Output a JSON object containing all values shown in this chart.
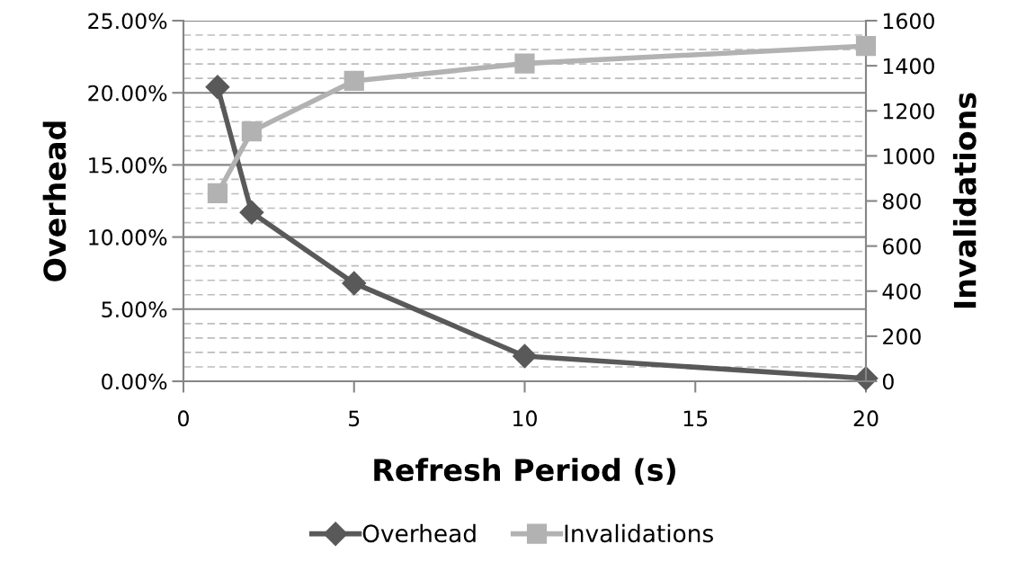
{
  "chart_data": {
    "type": "line",
    "xlabel": "Refresh Period (s)",
    "ylabel": "Overhead",
    "y2label": "Invalidations",
    "x": [
      1,
      2,
      5,
      10,
      20
    ],
    "xlim": [
      0,
      20
    ],
    "xticks": [
      0,
      5,
      10,
      15,
      20
    ],
    "ylim": [
      0,
      25
    ],
    "yticks": [
      {
        "value": 0,
        "label": "0.00%"
      },
      {
        "value": 1,
        "label": null
      },
      {
        "value": 2,
        "label": null
      },
      {
        "value": 3,
        "label": null
      },
      {
        "value": 4,
        "label": null
      },
      {
        "value": 5,
        "label": "5.00%"
      },
      {
        "value": 6,
        "label": null
      },
      {
        "value": 7,
        "label": null
      },
      {
        "value": 8,
        "label": null
      },
      {
        "value": 9,
        "label": null
      },
      {
        "value": 10,
        "label": "10.00%"
      },
      {
        "value": 11,
        "label": null
      },
      {
        "value": 12,
        "label": null
      },
      {
        "value": 13,
        "label": null
      },
      {
        "value": 14,
        "label": null
      },
      {
        "value": 15,
        "label": "15.00%"
      },
      {
        "value": 16,
        "label": null
      },
      {
        "value": 17,
        "label": null
      },
      {
        "value": 18,
        "label": null
      },
      {
        "value": 19,
        "label": null
      },
      {
        "value": 20,
        "label": "20.00%"
      },
      {
        "value": 21,
        "label": null
      },
      {
        "value": 22,
        "label": null
      },
      {
        "value": 23,
        "label": null
      },
      {
        "value": 24,
        "label": null
      },
      {
        "value": 25,
        "label": "25.00%"
      }
    ],
    "y2lim": [
      0,
      1600
    ],
    "y2ticks": [
      0,
      200,
      400,
      600,
      800,
      1000,
      1200,
      1400,
      1600
    ],
    "grid": "y",
    "legend": "bottom",
    "line_style": "solid",
    "series": [
      {
        "name": "Overhead",
        "color": "#595959",
        "marker": "diamond",
        "values": [
          20.4,
          11.7,
          6.8,
          1.75,
          0.2
        ]
      },
      {
        "name": "Invalidations",
        "color": "#b2b2b2",
        "marker": "square",
        "axis": "y2",
        "values": [
          834,
          1109,
          1333,
          1410,
          1488
        ]
      }
    ]
  }
}
